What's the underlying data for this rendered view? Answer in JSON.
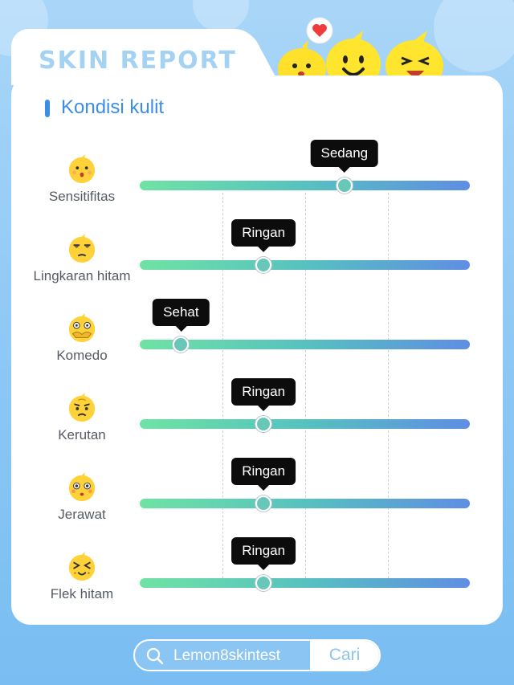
{
  "header": {
    "title": "SKIN REPORT"
  },
  "section": {
    "title": "Kondisi kulit"
  },
  "metrics": [
    {
      "label": "Sensitifitas",
      "level": "Sedang",
      "level_percent": 62,
      "emoji": "kiss-face-icon"
    },
    {
      "label": "Lingkaran hitam",
      "level": "Ringan",
      "level_percent": 37.5,
      "emoji": "tired-face-icon"
    },
    {
      "label": "Komedo",
      "level": "Sehat",
      "level_percent": 12.5,
      "emoji": "covering-mouth-face-icon"
    },
    {
      "label": "Kerutan",
      "level": "Ringan",
      "level_percent": 37.5,
      "emoji": "worried-face-icon"
    },
    {
      "label": "Jerawat",
      "level": "Ringan",
      "level_percent": 37.5,
      "emoji": "surprised-face-icon"
    },
    {
      "label": "Flek hitam",
      "level": "Ringan",
      "level_percent": 37.5,
      "emoji": "squinting-face-icon"
    }
  ],
  "search": {
    "query": "Lemon8skintest",
    "button_label": "Cari"
  },
  "colors": {
    "accent": "#3c8de8",
    "track_start": "#6fe3a4",
    "track_end": "#5f8ee3",
    "emoji_yellow": "#ffd23a",
    "background": "#8cc7f4"
  }
}
